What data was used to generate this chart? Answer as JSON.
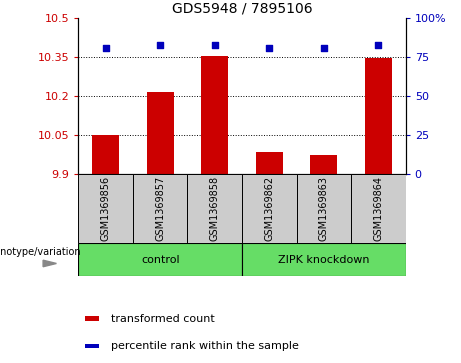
{
  "title": "GDS5948 / 7895106",
  "samples": [
    "GSM1369856",
    "GSM1369857",
    "GSM1369858",
    "GSM1369862",
    "GSM1369863",
    "GSM1369864"
  ],
  "bar_values": [
    10.05,
    10.215,
    10.355,
    9.985,
    9.975,
    10.345
  ],
  "scatter_values": [
    81,
    82.5,
    83,
    81,
    81,
    83
  ],
  "ylim_left": [
    9.9,
    10.5
  ],
  "ylim_right": [
    0,
    100
  ],
  "yticks_left": [
    9.9,
    10.05,
    10.2,
    10.35,
    10.5
  ],
  "ytick_labels_left": [
    "9.9",
    "10.05",
    "10.2",
    "10.35",
    "10.5"
  ],
  "yticks_right": [
    0,
    25,
    50,
    75,
    100
  ],
  "ytick_labels_right": [
    "0",
    "25",
    "50",
    "75",
    "100%"
  ],
  "grid_lines": [
    10.05,
    10.2,
    10.35
  ],
  "bar_color": "#cc0000",
  "scatter_color": "#0000bb",
  "bar_bottom": 9.9,
  "group_defs": [
    {
      "label": "control",
      "start": 0,
      "end": 2
    },
    {
      "label": "ZIPK knockdown",
      "start": 3,
      "end": 5
    }
  ],
  "group_color": "#66dd66",
  "genotype_label": "genotype/variation",
  "legend_items": [
    {
      "color": "#cc0000",
      "label": "transformed count"
    },
    {
      "color": "#0000bb",
      "label": "percentile rank within the sample"
    }
  ],
  "sample_box_color": "#cccccc",
  "title_fontsize": 10,
  "tick_fontsize": 8,
  "label_fontsize": 8,
  "legend_fontsize": 8
}
